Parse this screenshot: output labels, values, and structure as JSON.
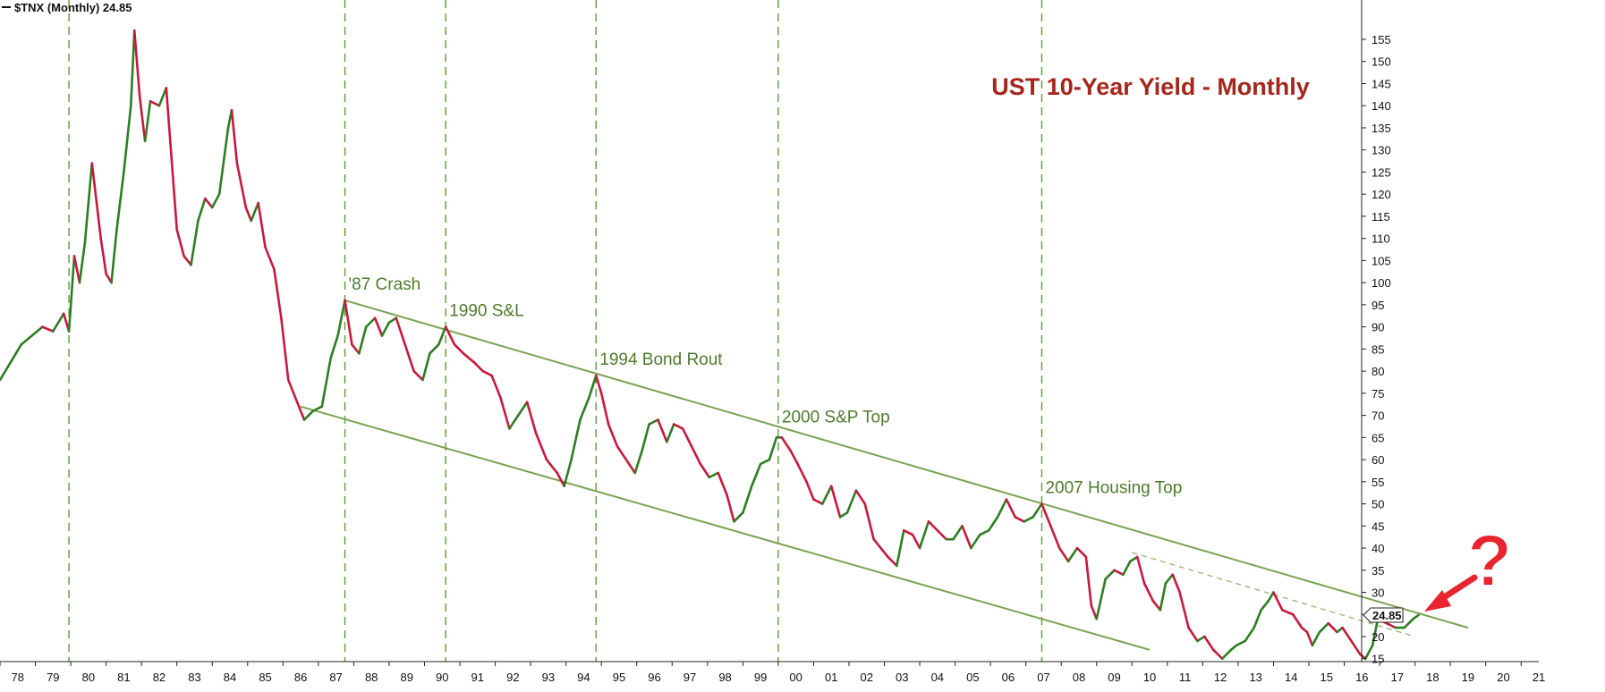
{
  "header": {
    "symbol_label": "$TNX (Monthly) 24.85"
  },
  "chart_data": {
    "type": "line",
    "title": "UST 10-Year Yield - Monthly",
    "symbol": "$TNX",
    "last_value_label": "24.85",
    "ylim": [
      13,
      160
    ],
    "yticks": [
      15,
      20,
      25,
      30,
      35,
      40,
      45,
      50,
      55,
      60,
      65,
      70,
      75,
      80,
      85,
      90,
      95,
      100,
      105,
      110,
      115,
      120,
      125,
      130,
      135,
      140,
      145,
      150,
      155
    ],
    "xticks": [
      "78",
      "79",
      "80",
      "81",
      "82",
      "83",
      "84",
      "85",
      "86",
      "87",
      "88",
      "89",
      "90",
      "91",
      "92",
      "93",
      "94",
      "95",
      "96",
      "97",
      "98",
      "99",
      "00",
      "01",
      "02",
      "03",
      "04",
      "05",
      "06",
      "07",
      "08",
      "09",
      "10",
      "11",
      "12",
      "13",
      "14",
      "15",
      "16",
      "17",
      "18",
      "19",
      "20",
      "21"
    ],
    "xlim": [
      1978.0,
      2021.5
    ],
    "series": [
      {
        "color_up": "#2e7d23",
        "color_down": "#c8193c",
        "points": [
          [
            1978.0,
            78
          ],
          [
            1978.3,
            82
          ],
          [
            1978.6,
            86
          ],
          [
            1978.9,
            88
          ],
          [
            1979.2,
            90
          ],
          [
            1979.5,
            89
          ],
          [
            1979.8,
            93
          ],
          [
            1979.95,
            89
          ],
          [
            1980.1,
            106
          ],
          [
            1980.25,
            100
          ],
          [
            1980.4,
            109
          ],
          [
            1980.6,
            127
          ],
          [
            1980.85,
            110
          ],
          [
            1981.0,
            102
          ],
          [
            1981.15,
            100
          ],
          [
            1981.3,
            112
          ],
          [
            1981.5,
            125
          ],
          [
            1981.7,
            140
          ],
          [
            1981.8,
            157
          ],
          [
            1981.95,
            142
          ],
          [
            1982.1,
            132
          ],
          [
            1982.25,
            141
          ],
          [
            1982.5,
            140
          ],
          [
            1982.7,
            144
          ],
          [
            1982.85,
            128
          ],
          [
            1983.0,
            112
          ],
          [
            1983.2,
            106
          ],
          [
            1983.4,
            104
          ],
          [
            1983.6,
            114
          ],
          [
            1983.8,
            119
          ],
          [
            1984.0,
            117
          ],
          [
            1984.2,
            120
          ],
          [
            1984.45,
            135
          ],
          [
            1984.55,
            139
          ],
          [
            1984.7,
            127
          ],
          [
            1984.95,
            117
          ],
          [
            1985.1,
            114
          ],
          [
            1985.3,
            118
          ],
          [
            1985.5,
            108
          ],
          [
            1985.75,
            103
          ],
          [
            1985.95,
            92
          ],
          [
            1986.15,
            78
          ],
          [
            1986.35,
            74
          ],
          [
            1986.6,
            69
          ],
          [
            1986.85,
            71
          ],
          [
            1987.1,
            72
          ],
          [
            1987.35,
            83
          ],
          [
            1987.55,
            88
          ],
          [
            1987.75,
            96
          ],
          [
            1987.95,
            86
          ],
          [
            1988.15,
            84
          ],
          [
            1988.35,
            90
          ],
          [
            1988.6,
            92
          ],
          [
            1988.8,
            88
          ],
          [
            1989.0,
            91
          ],
          [
            1989.2,
            92
          ],
          [
            1989.45,
            86
          ],
          [
            1989.7,
            80
          ],
          [
            1989.95,
            78
          ],
          [
            1990.15,
            84
          ],
          [
            1990.4,
            86
          ],
          [
            1990.6,
            90
          ],
          [
            1990.85,
            86
          ],
          [
            1991.1,
            84
          ],
          [
            1991.4,
            82
          ],
          [
            1991.65,
            80
          ],
          [
            1991.9,
            79
          ],
          [
            1992.15,
            74
          ],
          [
            1992.4,
            67
          ],
          [
            1992.65,
            70
          ],
          [
            1992.9,
            73
          ],
          [
            1993.15,
            66
          ],
          [
            1993.45,
            60
          ],
          [
            1993.75,
            57
          ],
          [
            1993.95,
            54
          ],
          [
            1994.15,
            60
          ],
          [
            1994.4,
            69
          ],
          [
            1994.65,
            74
          ],
          [
            1994.85,
            79
          ],
          [
            1995.0,
            75
          ],
          [
            1995.2,
            68
          ],
          [
            1995.45,
            63
          ],
          [
            1995.7,
            60
          ],
          [
            1995.95,
            57
          ],
          [
            1996.15,
            62
          ],
          [
            1996.35,
            68
          ],
          [
            1996.6,
            69
          ],
          [
            1996.85,
            64
          ],
          [
            1997.05,
            68
          ],
          [
            1997.3,
            67
          ],
          [
            1997.55,
            63
          ],
          [
            1997.8,
            59
          ],
          [
            1998.05,
            56
          ],
          [
            1998.3,
            57
          ],
          [
            1998.55,
            52
          ],
          [
            1998.75,
            46
          ],
          [
            1999.0,
            48
          ],
          [
            1999.25,
            54
          ],
          [
            1999.5,
            59
          ],
          [
            1999.75,
            60
          ],
          [
            1999.95,
            65
          ],
          [
            2000.1,
            65
          ],
          [
            2000.35,
            62
          ],
          [
            2000.55,
            59
          ],
          [
            2000.8,
            55
          ],
          [
            2001.0,
            51
          ],
          [
            2001.25,
            50
          ],
          [
            2001.5,
            54
          ],
          [
            2001.75,
            47
          ],
          [
            2001.95,
            48
          ],
          [
            2002.2,
            53
          ],
          [
            2002.45,
            50
          ],
          [
            2002.7,
            42
          ],
          [
            2002.9,
            40
          ],
          [
            2003.1,
            38
          ],
          [
            2003.35,
            36
          ],
          [
            2003.55,
            44
          ],
          [
            2003.8,
            43
          ],
          [
            2004.0,
            40
          ],
          [
            2004.25,
            46
          ],
          [
            2004.5,
            44
          ],
          [
            2004.75,
            42
          ],
          [
            2004.95,
            42
          ],
          [
            2005.2,
            45
          ],
          [
            2005.45,
            40
          ],
          [
            2005.7,
            43
          ],
          [
            2005.95,
            44
          ],
          [
            2006.2,
            47
          ],
          [
            2006.45,
            51
          ],
          [
            2006.7,
            47
          ],
          [
            2006.95,
            46
          ],
          [
            2007.2,
            47
          ],
          [
            2007.45,
            50
          ],
          [
            2007.7,
            45
          ],
          [
            2007.95,
            40
          ],
          [
            2008.2,
            37
          ],
          [
            2008.45,
            40
          ],
          [
            2008.7,
            38
          ],
          [
            2008.85,
            27
          ],
          [
            2009.0,
            24
          ],
          [
            2009.25,
            33
          ],
          [
            2009.5,
            35
          ],
          [
            2009.75,
            34
          ],
          [
            2009.95,
            37
          ],
          [
            2010.15,
            38
          ],
          [
            2010.35,
            32
          ],
          [
            2010.6,
            28
          ],
          [
            2010.8,
            26
          ],
          [
            2010.95,
            32
          ],
          [
            2011.15,
            34
          ],
          [
            2011.35,
            30
          ],
          [
            2011.6,
            22
          ],
          [
            2011.85,
            19
          ],
          [
            2012.05,
            20
          ],
          [
            2012.3,
            17
          ],
          [
            2012.55,
            15
          ],
          [
            2012.8,
            17
          ],
          [
            2012.95,
            18
          ],
          [
            2013.2,
            19
          ],
          [
            2013.45,
            22
          ],
          [
            2013.65,
            26
          ],
          [
            2013.85,
            28
          ],
          [
            2014.0,
            30
          ],
          [
            2014.25,
            26
          ],
          [
            2014.55,
            25
          ],
          [
            2014.8,
            22
          ],
          [
            2014.95,
            21
          ],
          [
            2015.1,
            18
          ],
          [
            2015.3,
            21
          ],
          [
            2015.55,
            23
          ],
          [
            2015.8,
            21
          ],
          [
            2015.95,
            22
          ],
          [
            2016.2,
            19
          ],
          [
            2016.45,
            16
          ],
          [
            2016.6,
            15
          ],
          [
            2016.8,
            18
          ],
          [
            2016.95,
            24
          ],
          [
            2017.2,
            23
          ],
          [
            2017.45,
            22
          ],
          [
            2017.7,
            22
          ],
          [
            2017.95,
            24
          ],
          [
            2018.1,
            24.85
          ]
        ]
      }
    ],
    "annotations": [
      {
        "text": "'87 Crash",
        "x": 1987.75,
        "y": 96
      },
      {
        "text": "1990 S&L",
        "x": 1990.6,
        "y": 90
      },
      {
        "text": "1994 Bond Rout",
        "x": 1994.85,
        "y": 79
      },
      {
        "text": "2000 S&P Top",
        "x": 2000.0,
        "y": 66
      },
      {
        "text": "2007 Housing Top",
        "x": 2007.45,
        "y": 50
      }
    ],
    "event_years": [
      1979.95,
      1987.75,
      1990.6,
      1994.85,
      2000.0,
      2007.45
    ],
    "channel_upper": [
      [
        1987.75,
        96
      ],
      [
        2019.5,
        22
      ]
    ],
    "channel_lower": [
      [
        1986.5,
        72
      ],
      [
        2010.5,
        17
      ]
    ],
    "minor_trendline": [
      [
        2010.0,
        39
      ],
      [
        2018.0,
        20
      ]
    ],
    "callout": {
      "text": "?",
      "color": "#e8242f"
    }
  }
}
